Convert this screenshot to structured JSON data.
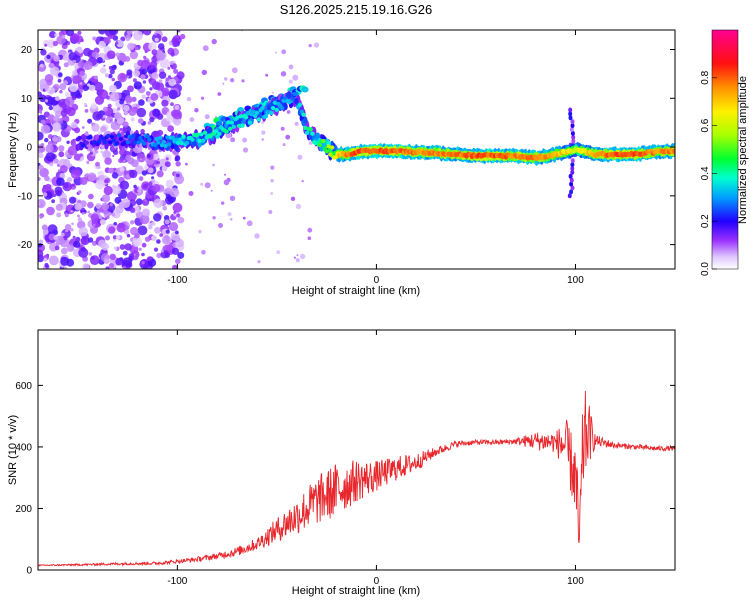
{
  "figure_title": "S126.2025.215.19.16.G26",
  "chart_data": [
    {
      "type": "heatmap",
      "xlabel": "Height of straight line (km)",
      "ylabel": "Frequency (Hz)",
      "xlim": [
        -170,
        150
      ],
      "ylim": [
        -25,
        24
      ],
      "x_ticks": [
        -100,
        0,
        100
      ],
      "y_ticks": [
        -20,
        -10,
        0,
        10,
        20
      ],
      "colorbar": {
        "label": "Normalized spectral amplitude",
        "range": [
          0.0,
          1.0
        ],
        "ticks": [
          0.0,
          0.2,
          0.4,
          0.6,
          0.8
        ],
        "colors": [
          "#ffffff",
          "#b070ff",
          "#7a00ff",
          "#0000ff",
          "#00c8ff",
          "#00ff60",
          "#a0ff00",
          "#ffff00",
          "#ff8000",
          "#ff0000",
          "#ff0090"
        ]
      },
      "ridge": {
        "x": [
          -170,
          -150,
          -130,
          -120,
          -110,
          -100,
          -90,
          -80,
          -70,
          -60,
          -50,
          -45,
          -40,
          -35,
          -30,
          -25,
          -20,
          -15,
          -10,
          0,
          10,
          20,
          30,
          40,
          50,
          60,
          70,
          80,
          90,
          95,
          100,
          110,
          120,
          130,
          140,
          150
        ],
        "frequency": [
          1.5,
          1.0,
          1.5,
          1.5,
          1.0,
          1.0,
          1.5,
          3.0,
          5.0,
          6.5,
          8.5,
          9.5,
          10.0,
          4.0,
          1.5,
          0.0,
          -1.5,
          -1.5,
          -1.0,
          -0.8,
          -0.8,
          -1.0,
          -1.2,
          -1.5,
          -1.8,
          -1.8,
          -1.8,
          -2.2,
          -1.5,
          -1.0,
          -0.5,
          -1.5,
          -1.5,
          -1.5,
          -1.0,
          -0.8
        ],
        "amplitude": [
          0.15,
          0.2,
          0.25,
          0.3,
          0.35,
          0.4,
          0.45,
          0.45,
          0.45,
          0.4,
          0.4,
          0.35,
          0.35,
          0.45,
          0.5,
          0.6,
          0.8,
          0.9,
          0.95,
          0.95,
          0.95,
          0.9,
          0.9,
          0.9,
          0.95,
          0.95,
          0.9,
          0.9,
          0.85,
          0.8,
          0.7,
          0.9,
          0.95,
          0.95,
          0.9,
          0.9
        ]
      }
    },
    {
      "type": "line",
      "xlabel": "Height of straight line (km)",
      "ylabel": "SNR (10 * v/v)",
      "xlim": [
        -170,
        150
      ],
      "ylim": [
        0,
        780
      ],
      "x_ticks": [
        -100,
        0,
        100
      ],
      "y_ticks": [
        0,
        200,
        400,
        600
      ],
      "series": [
        {
          "color": "#e8262b",
          "x": [
            -170,
            -150,
            -130,
            -110,
            -100,
            -90,
            -80,
            -70,
            -60,
            -50,
            -40,
            -30,
            -20,
            -10,
            0,
            10,
            20,
            30,
            40,
            50,
            60,
            70,
            80,
            90,
            95,
            100,
            102,
            104,
            106,
            110,
            120,
            130,
            140,
            150
          ],
          "y": [
            15,
            17,
            20,
            22,
            28,
            35,
            45,
            60,
            85,
            130,
            175,
            225,
            260,
            290,
            305,
            330,
            350,
            385,
            410,
            415,
            415,
            418,
            420,
            415,
            405,
            300,
            80,
            420,
            450,
            420,
            405,
            400,
            395,
            395
          ],
          "noise": [
            2,
            3,
            4,
            5,
            6,
            8,
            10,
            15,
            20,
            40,
            60,
            80,
            90,
            70,
            50,
            40,
            30,
            15,
            10,
            8,
            8,
            10,
            30,
            35,
            90,
            120,
            150,
            180,
            120,
            20,
            10,
            8,
            8,
            8
          ]
        }
      ]
    }
  ]
}
